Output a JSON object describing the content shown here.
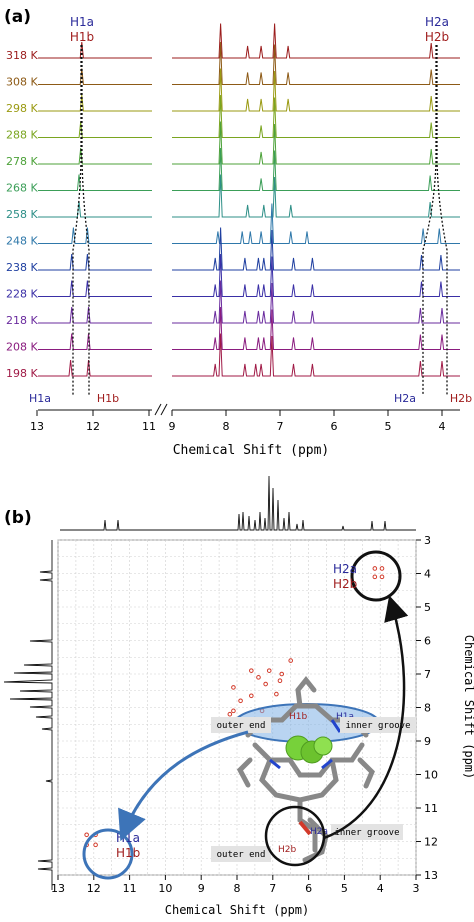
{
  "panel_a": {
    "label": "(a)",
    "peak_labels": {
      "h1a": "H1a",
      "h1b": "H1b",
      "h2a": "H2a",
      "h2b": "H2b",
      "h1a_color": "#2b2b9a",
      "h1b_color": "#a01e1e"
    },
    "temperatures": [
      "318 K",
      "308 K",
      "298 K",
      "288 K",
      "278 K",
      "268 K",
      "258 K",
      "248 K",
      "238 K",
      "228 K",
      "218 K",
      "208 K",
      "198 K"
    ],
    "trace_colors": [
      "#9b1c1c",
      "#8d5a16",
      "#9a9a12",
      "#7aa520",
      "#4da23a",
      "#3b9e58",
      "#2e8f87",
      "#2f78aa",
      "#1f3fa0",
      "#3a2fa6",
      "#6a2b9e",
      "#8a1c7f",
      "#a01a46"
    ],
    "axis_label": "Chemical Shift (ppm)",
    "axis_ticks_left": [
      "13",
      "12",
      "11"
    ],
    "axis_ticks_right": [
      "9",
      "8",
      "7",
      "6",
      "5",
      "4"
    ]
  },
  "panel_b": {
    "label": "(b)",
    "x_ticks": [
      "13",
      "12",
      "11",
      "10",
      "9",
      "8",
      "7",
      "6",
      "5",
      "4",
      "3"
    ],
    "y_ticks": [
      "3",
      "4",
      "5",
      "6",
      "7",
      "8",
      "9",
      "10",
      "11",
      "12",
      "13"
    ],
    "x_label": "Chemical Shift (ppm)",
    "y_label": "Chemical Shift (ppm)",
    "annotations": {
      "outer_end_top": "outer end",
      "inner_groove_top": "inner groove",
      "inner_groove_bottom": "inner groove",
      "outer_end_bottom": "outer end"
    },
    "circle_labels": {
      "h1a": "H1a",
      "h1b": "H1b",
      "h2a": "H2a",
      "h2b": "H2b"
    },
    "colors": {
      "blue_arrow": "#3d74b8",
      "cross_peak": "#d23a2a",
      "highlight": "#7fb1e6"
    }
  },
  "chart_data": [
    {
      "type": "line",
      "title": "",
      "xlabel": "Chemical Shift (ppm)",
      "x_direction": "decreasing",
      "xlim_segments": [
        [
          13,
          11
        ],
        [
          9,
          3.8
        ]
      ],
      "series": [
        {
          "name": "318 K",
          "peaks_ppm": [
            12.2,
            8.1,
            7.6,
            7.35,
            7.1,
            6.85,
            4.2
          ]
        },
        {
          "name": "308 K",
          "peaks_ppm": [
            12.2,
            8.1,
            7.6,
            7.35,
            7.1,
            6.85,
            4.2
          ]
        },
        {
          "name": "298 K",
          "peaks_ppm": [
            12.2,
            8.1,
            7.6,
            7.35,
            7.1,
            6.85,
            4.2
          ]
        },
        {
          "name": "288 K",
          "peaks_ppm": [
            12.22,
            8.1,
            7.35,
            7.1,
            4.2
          ]
        },
        {
          "name": "278 K",
          "peaks_ppm": [
            12.22,
            8.1,
            7.35,
            7.1,
            4.2
          ]
        },
        {
          "name": "268 K",
          "peaks_ppm": [
            12.25,
            8.1,
            7.35,
            7.1,
            4.22
          ]
        },
        {
          "name": "258 K",
          "peaks_ppm": [
            12.25,
            8.1,
            7.6,
            7.3,
            7.1,
            6.8,
            4.22
          ]
        },
        {
          "name": "248 K",
          "peaks_ppm": [
            12.35,
            12.1,
            8.15,
            7.7,
            7.55,
            7.35,
            7.15,
            6.8,
            6.5,
            4.35,
            4.05
          ]
        },
        {
          "name": "238 K",
          "peaks_ppm": [
            12.38,
            12.1,
            8.2,
            8.1,
            7.65,
            7.4,
            7.3,
            7.15,
            6.75,
            6.4,
            4.38,
            4.02
          ]
        },
        {
          "name": "228 K",
          "peaks_ppm": [
            12.38,
            12.1,
            8.2,
            8.1,
            7.65,
            7.4,
            7.3,
            7.15,
            6.75,
            6.4,
            4.38,
            4.02
          ]
        },
        {
          "name": "218 K",
          "peaks_ppm": [
            12.38,
            12.08,
            8.2,
            8.1,
            7.65,
            7.4,
            7.3,
            7.15,
            6.75,
            6.4,
            4.4,
            4.0
          ]
        },
        {
          "name": "208 K",
          "peaks_ppm": [
            12.38,
            12.08,
            8.2,
            8.1,
            7.65,
            7.4,
            7.3,
            7.15,
            6.75,
            6.4,
            4.4,
            4.0
          ]
        },
        {
          "name": "198 K",
          "peaks_ppm": [
            12.4,
            12.08,
            8.2,
            8.1,
            7.65,
            7.45,
            7.35,
            7.15,
            6.75,
            6.4,
            4.4,
            4.0
          ]
        }
      ]
    },
    {
      "type": "scatter",
      "title": "",
      "xlabel": "Chemical Shift (ppm)",
      "ylabel": "Chemical Shift (ppm)",
      "xlim": [
        13,
        3
      ],
      "ylim": [
        3,
        13
      ],
      "grid": true,
      "series": [
        {
          "name": "cross peaks",
          "points": [
            [
              12.2,
              11.8
            ],
            [
              11.95,
              11.8
            ],
            [
              12.2,
              12.1
            ],
            [
              11.95,
              12.1
            ],
            [
              4.15,
              3.85
            ],
            [
              3.95,
              3.85
            ],
            [
              4.15,
              4.1
            ],
            [
              3.95,
              4.1
            ],
            [
              8.1,
              7.4
            ],
            [
              7.9,
              7.8
            ],
            [
              7.6,
              6.9
            ],
            [
              7.1,
              6.9
            ],
            [
              6.8,
              7.2
            ],
            [
              7.4,
              7.1
            ],
            [
              7.2,
              7.3
            ],
            [
              6.9,
              7.6
            ],
            [
              7.3,
              8.1
            ],
            [
              8.2,
              8.2
            ],
            [
              6.5,
              6.6
            ],
            [
              7.6,
              7.65
            ],
            [
              6.75,
              7.0
            ],
            [
              8.1,
              8.1
            ]
          ]
        }
      ]
    }
  ]
}
